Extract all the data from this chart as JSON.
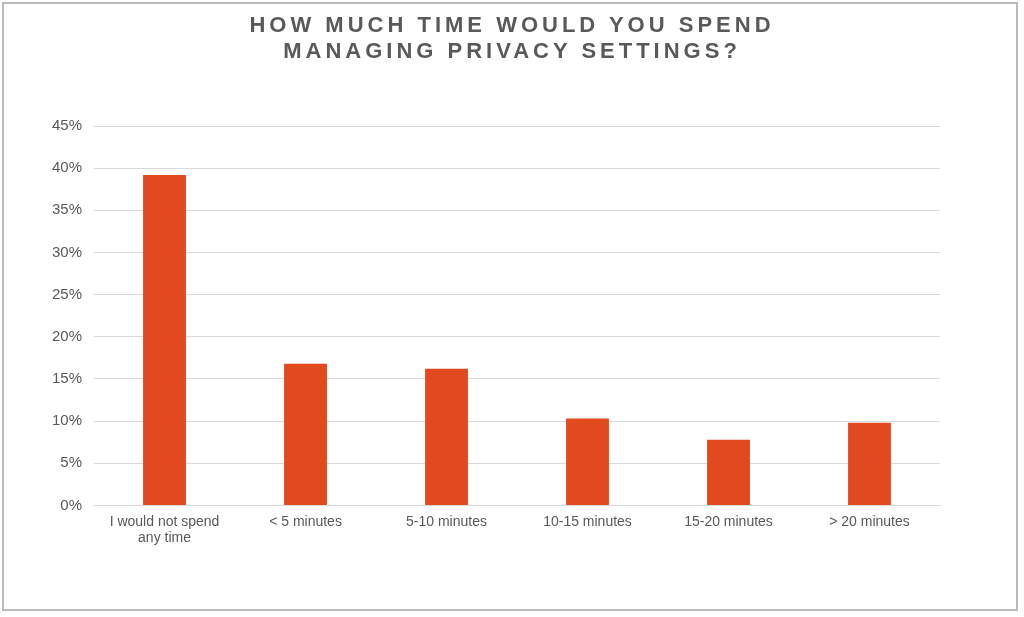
{
  "chart_data": {
    "type": "bar",
    "title": "HOW MUCH TIME WOULD YOU SPEND MANAGING PRIVACY SETTINGS?",
    "categories": [
      "I would not spend any time",
      "< 5 minutes",
      "5-10 minutes",
      "10-15 minutes",
      "15-20 minutes",
      "> 20 minutes"
    ],
    "values": [
      39.2,
      16.8,
      16.2,
      10.3,
      7.8,
      9.8
    ],
    "color": "#e04a1e",
    "ylim": [
      0,
      45
    ],
    "yticks": [
      {
        "value": 0,
        "label": "0%"
      },
      {
        "value": 5,
        "label": "5%"
      },
      {
        "value": 10,
        "label": "10%"
      },
      {
        "value": 15,
        "label": "15%"
      },
      {
        "value": 20,
        "label": "20%"
      },
      {
        "value": 25,
        "label": "25%"
      },
      {
        "value": 30,
        "label": "30%"
      },
      {
        "value": 35,
        "label": "35%"
      },
      {
        "value": 40,
        "label": "40%"
      },
      {
        "value": 45,
        "label": "45%"
      }
    ],
    "grid": "y"
  }
}
